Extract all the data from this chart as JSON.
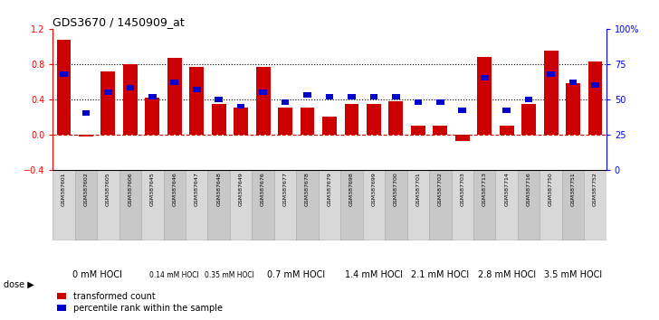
{
  "title": "GDS3670 / 1450909_at",
  "samples": [
    "GSM387601",
    "GSM387602",
    "GSM387605",
    "GSM387606",
    "GSM387645",
    "GSM387646",
    "GSM387647",
    "GSM387648",
    "GSM387649",
    "GSM387676",
    "GSM387677",
    "GSM387678",
    "GSM387679",
    "GSM387698",
    "GSM387699",
    "GSM387700",
    "GSM387701",
    "GSM387702",
    "GSM387703",
    "GSM387713",
    "GSM387714",
    "GSM387716",
    "GSM387750",
    "GSM387751",
    "GSM387752"
  ],
  "transformed_counts": [
    1.08,
    -0.02,
    0.72,
    0.8,
    0.42,
    0.87,
    0.77,
    0.35,
    0.3,
    0.77,
    0.3,
    0.3,
    0.2,
    0.35,
    0.35,
    0.38,
    0.1,
    0.1,
    -0.08,
    0.88,
    0.1,
    0.35,
    0.95,
    0.58,
    0.83
  ],
  "percentile_ranks": [
    68,
    40,
    55,
    58,
    52,
    62,
    57,
    50,
    45,
    55,
    48,
    53,
    52,
    52,
    52,
    52,
    48,
    48,
    42,
    65,
    42,
    50,
    68,
    62,
    60
  ],
  "dose_groups": [
    {
      "label": "0 mM HOCl",
      "start": 0,
      "end": 4,
      "color": "#ccffcc",
      "fontsize": 7
    },
    {
      "label": "0.14 mM HOCl",
      "start": 4,
      "end": 7,
      "color": "#b8ffb8",
      "fontsize": 5.5
    },
    {
      "label": "0.35 mM HOCl",
      "start": 7,
      "end": 9,
      "color": "#b8ffb8",
      "fontsize": 5.5
    },
    {
      "label": "0.7 mM HOCl",
      "start": 9,
      "end": 13,
      "color": "#88ff88",
      "fontsize": 7
    },
    {
      "label": "1.4 mM HOCl",
      "start": 13,
      "end": 16,
      "color": "#88ff88",
      "fontsize": 7
    },
    {
      "label": "2.1 mM HOCl",
      "start": 16,
      "end": 19,
      "color": "#88ff88",
      "fontsize": 7
    },
    {
      "label": "2.8 mM HOCl",
      "start": 19,
      "end": 22,
      "color": "#44ff44",
      "fontsize": 7
    },
    {
      "label": "3.5 mM HOCl",
      "start": 22,
      "end": 25,
      "color": "#00ee00",
      "fontsize": 7
    }
  ],
  "bar_color": "#cc0000",
  "dot_color": "#0000cc",
  "ylim_left": [
    -0.4,
    1.2
  ],
  "ylim_right": [
    0,
    100
  ],
  "yticks_left": [
    -0.4,
    0.0,
    0.4,
    0.8,
    1.2
  ],
  "yticks_right": [
    0,
    25,
    50,
    75,
    100
  ],
  "ytick_labels_right": [
    "0",
    "25",
    "50",
    "75",
    "100%"
  ],
  "hlines_y": [
    0.0,
    0.4,
    0.8
  ],
  "hline_styles": [
    "--",
    ":",
    ":"
  ],
  "hline_colors": [
    "#cc0000",
    "black",
    "black"
  ],
  "bg_color": "#ffffff"
}
